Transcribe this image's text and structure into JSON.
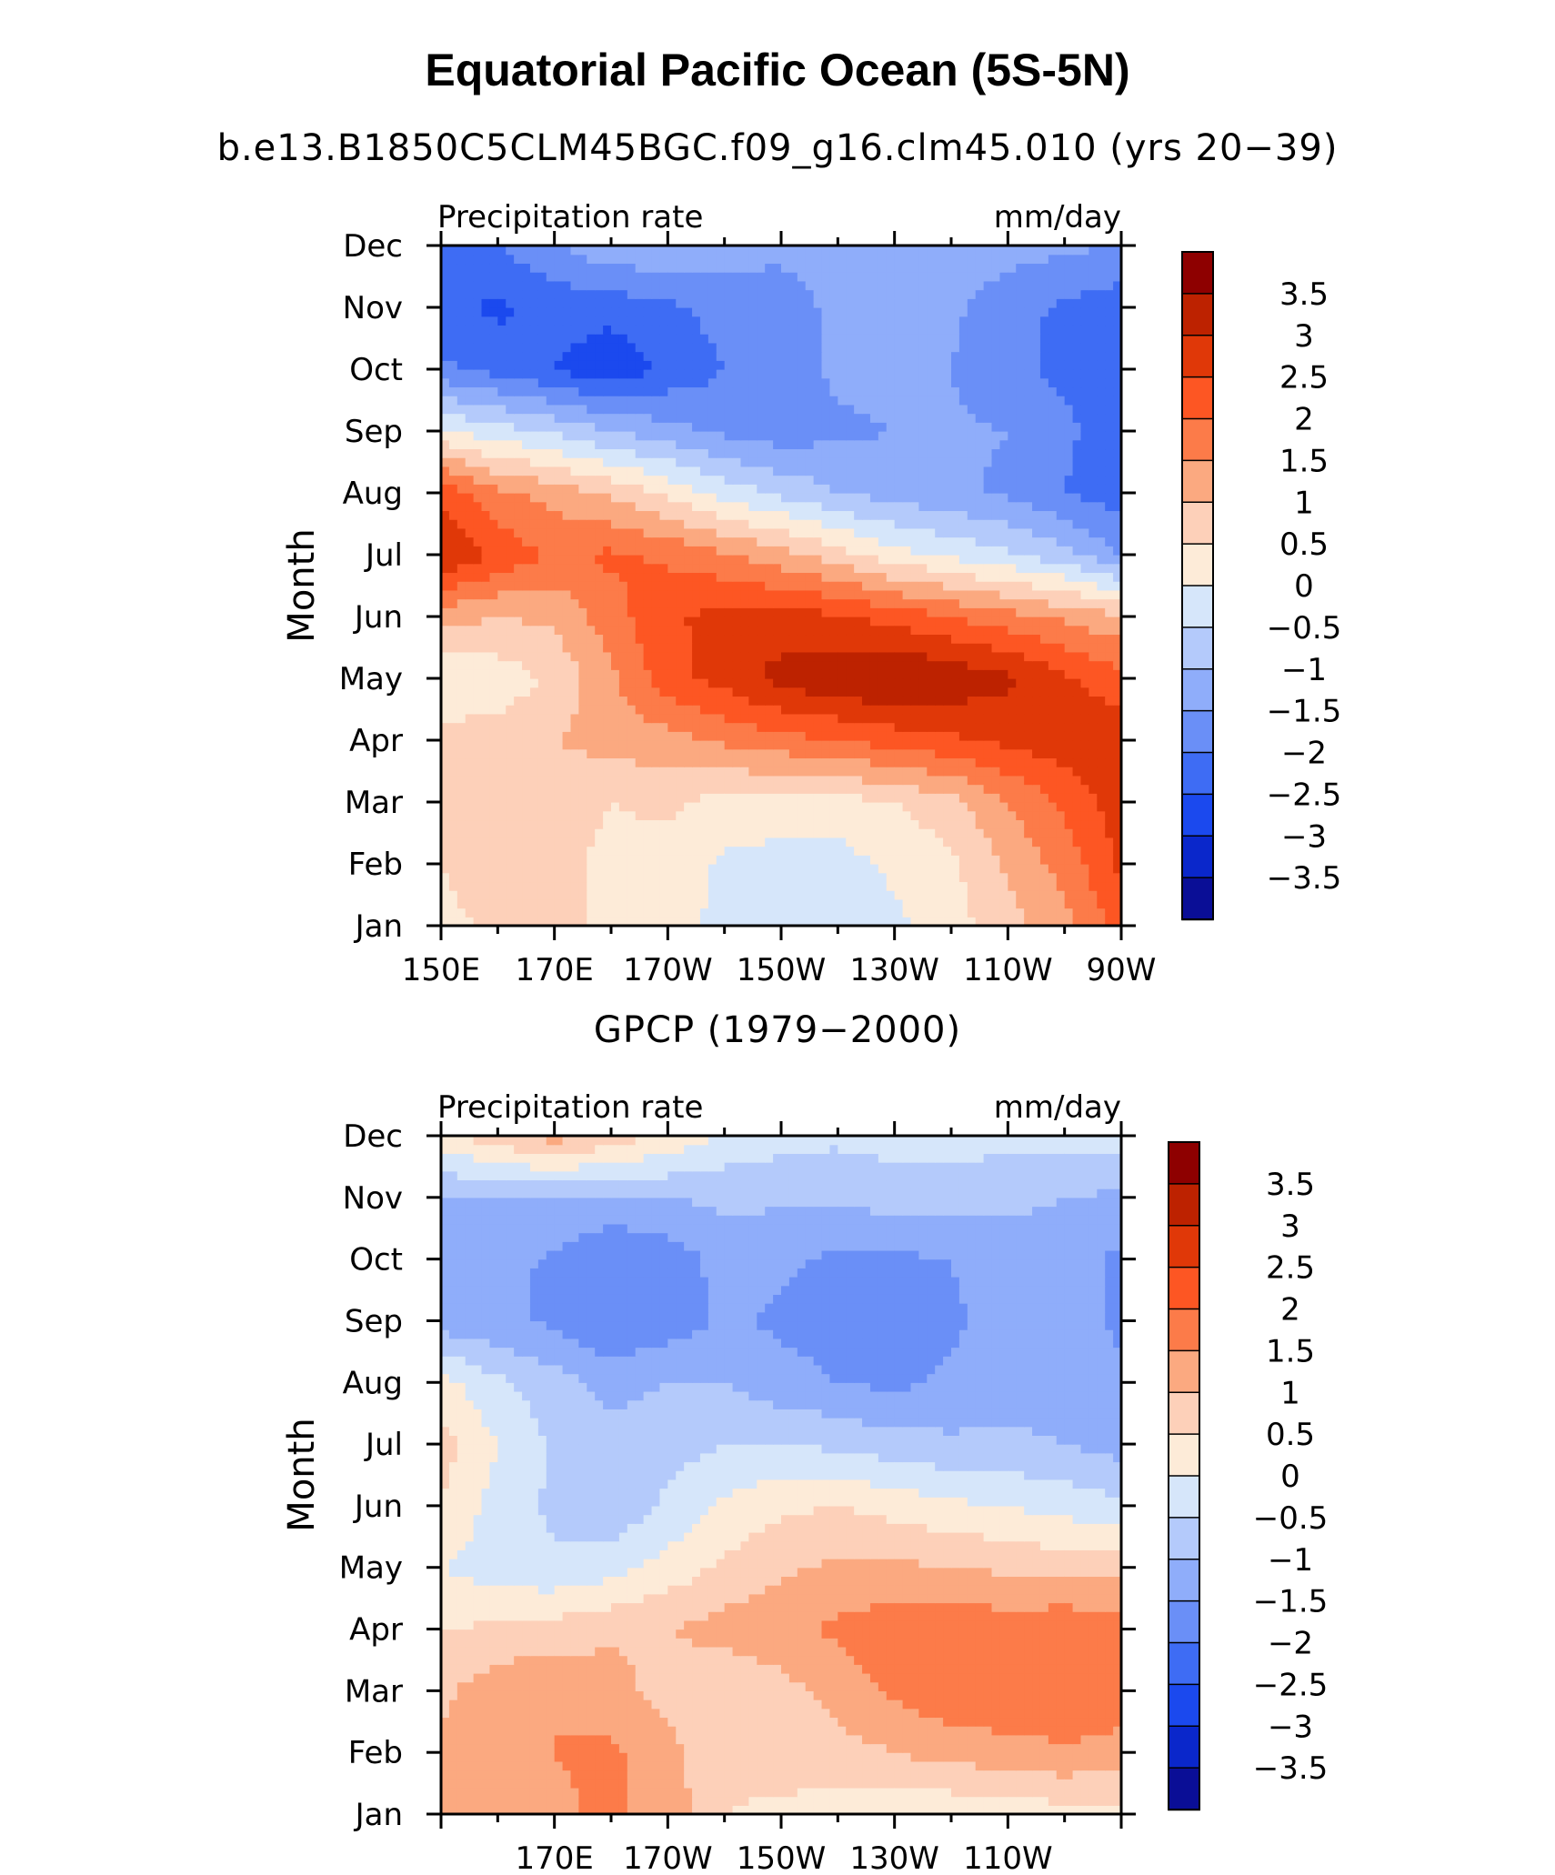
{
  "figure": {
    "title": "Equatorial Pacific Ocean (5S-5N)"
  },
  "colorbar_levels": [
    "3.5",
    "3",
    "2.5",
    "2",
    "1.5",
    "1",
    "0.5",
    "0",
    "−0.5",
    "−1",
    "−1.5",
    "−2",
    "−2.5",
    "−3",
    "−3.5"
  ],
  "colors": {
    "palette": [
      "#8e0000",
      "#bd2200",
      "#e03808",
      "#fd5623",
      "#fc7b49",
      "#fba980",
      "#fdd0b9",
      "#fdebd8",
      "#d6e6fa",
      "#b4cafb",
      "#8fadfa",
      "#6a8ff7",
      "#3e6cf4",
      "#1b49ee",
      "#0a27cb",
      "#0a0e96"
    ]
  },
  "chart_data": [
    {
      "type": "heatmap",
      "title": "b.e13.B1850C5CLM45BGC.f09_g16.clm45.010 (yrs 20−39)",
      "left_string": "Precipitation rate",
      "right_string": "mm/day",
      "xlabel": "",
      "ylabel": "Month",
      "x_ticks": [
        "150E",
        "170E",
        "170W",
        "150W",
        "130W",
        "110W",
        "90W"
      ],
      "x_range": [
        150,
        270
      ],
      "y_ticks": [
        "Jan",
        "Feb",
        "Mar",
        "Apr",
        "May",
        "Jun",
        "Jul",
        "Aug",
        "Sep",
        "Oct",
        "Nov",
        "Dec"
      ],
      "colorbar_range": [
        -3.5,
        3.5
      ],
      "x": [
        150,
        160,
        170,
        180,
        190,
        200,
        210,
        220,
        230,
        240,
        250,
        260,
        270
      ],
      "values": [
        [
          0.3,
          0.6,
          0.6,
          0.4,
          0.3,
          -0.2,
          -0.3,
          -0.3,
          -0.1,
          0.3,
          0.8,
          1.3,
          2.2
        ],
        [
          0.5,
          1.0,
          0.6,
          0.4,
          0.3,
          -0.1,
          -0.2,
          -0.2,
          0.1,
          0.4,
          1.1,
          1.7,
          2.6
        ],
        [
          0.7,
          0.9,
          0.7,
          0.5,
          0.6,
          0.3,
          0.3,
          0.3,
          0.5,
          0.8,
          1.5,
          2.1,
          2.8
        ],
        [
          0.7,
          0.7,
          1.0,
          1.2,
          1.3,
          1.6,
          1.8,
          2.0,
          2.2,
          2.4,
          2.6,
          2.8,
          2.9
        ],
        [
          0.1,
          0.2,
          0.6,
          1.4,
          2.3,
          2.7,
          3.2,
          3.4,
          3.6,
          3.4,
          3.1,
          2.6,
          2.2
        ],
        [
          1.2,
          1.0,
          1.1,
          1.8,
          2.4,
          2.7,
          2.7,
          2.6,
          2.3,
          2.0,
          1.7,
          1.4,
          1.1
        ],
        [
          3.1,
          2.4,
          1.9,
          2.1,
          1.9,
          1.6,
          1.2,
          0.7,
          0.2,
          -0.1,
          -0.4,
          -0.8,
          -1.5
        ],
        [
          2.4,
          1.6,
          1.3,
          0.9,
          0.4,
          -0.2,
          -0.6,
          -1.0,
          -1.2,
          -1.4,
          -1.6,
          -2.0,
          -2.3
        ],
        [
          0.1,
          -0.3,
          -0.6,
          -1.0,
          -1.3,
          -1.6,
          -1.8,
          -1.6,
          -1.5,
          -1.4,
          -1.5,
          -1.9,
          -2.3
        ],
        [
          -1.9,
          -2.2,
          -2.5,
          -2.9,
          -2.4,
          -2.0,
          -1.7,
          -1.4,
          -1.3,
          -1.5,
          -1.9,
          -2.1,
          -2.4
        ],
        [
          -2.4,
          -2.6,
          -2.3,
          -2.3,
          -2.1,
          -1.8,
          -1.7,
          -1.4,
          -1.3,
          -1.4,
          -1.8,
          -2.1,
          -2.3
        ],
        [
          -2.0,
          -2.0,
          -1.6,
          -1.1,
          -1.1,
          -1.3,
          -1.4,
          -1.4,
          -1.2,
          -1.2,
          -1.3,
          -1.4,
          -1.5
        ]
      ]
    },
    {
      "type": "heatmap",
      "title": "GPCP (1979−2000)",
      "left_string": "Precipitation rate",
      "right_string": "mm/day",
      "xlabel": "",
      "ylabel": "Month",
      "x_ticks": [
        "170E",
        "170W",
        "150W",
        "130W",
        "110W"
      ],
      "x_range": [
        150,
        270
      ],
      "y_ticks": [
        "Jan",
        "Feb",
        "Mar",
        "Apr",
        "May",
        "Jun",
        "Jul",
        "Aug",
        "Sep",
        "Oct",
        "Nov",
        "Dec"
      ],
      "colorbar_range": [
        -3.5,
        3.5
      ],
      "x": [
        150,
        160,
        170,
        180,
        190,
        200,
        210,
        220,
        230,
        240,
        250,
        260,
        270
      ],
      "values": [
        [
          1.0,
          1.1,
          1.4,
          1.6,
          1.3,
          0.5,
          0.4,
          0.3,
          0.1,
          0.1,
          0.2,
          0.3,
          0.3
        ],
        [
          1.1,
          1.2,
          1.5,
          1.6,
          1.2,
          0.6,
          0.7,
          0.8,
          1.0,
          1.2,
          1.3,
          1.4,
          1.3
        ],
        [
          0.9,
          1.3,
          1.5,
          1.2,
          0.8,
          0.5,
          0.8,
          1.2,
          1.6,
          1.9,
          1.9,
          2.0,
          1.8
        ],
        [
          0.5,
          0.6,
          0.7,
          0.9,
          1.0,
          1.2,
          1.4,
          1.6,
          1.8,
          1.9,
          1.8,
          1.9,
          1.8
        ],
        [
          0.0,
          -0.3,
          -0.4,
          -0.2,
          0.2,
          0.6,
          0.9,
          1.1,
          1.1,
          1.0,
          0.9,
          0.8,
          0.8
        ],
        [
          0.5,
          -0.2,
          -0.6,
          -0.9,
          -0.4,
          0.1,
          0.4,
          0.5,
          0.3,
          0.1,
          0.0,
          -0.2,
          -0.4
        ],
        [
          0.7,
          0.0,
          -0.6,
          -0.8,
          -0.7,
          -0.5,
          -0.5,
          -0.6,
          -0.8,
          -0.9,
          -0.9,
          -1.0,
          -1.2
        ],
        [
          0.2,
          -0.4,
          -0.8,
          -1.2,
          -1.0,
          -1.0,
          -1.3,
          -1.5,
          -1.6,
          -1.4,
          -1.2,
          -1.2,
          -1.4
        ],
        [
          -1.3,
          -1.4,
          -1.6,
          -2.0,
          -1.8,
          -1.4,
          -1.6,
          -1.7,
          -1.7,
          -1.6,
          -1.3,
          -1.3,
          -1.6
        ],
        [
          -1.1,
          -1.3,
          -1.6,
          -2.0,
          -1.8,
          -1.3,
          -1.4,
          -1.6,
          -1.6,
          -1.5,
          -1.2,
          -1.3,
          -1.6
        ],
        [
          -1.0,
          -1.1,
          -1.0,
          -1.1,
          -1.0,
          -0.9,
          -0.9,
          -0.9,
          -0.8,
          -0.8,
          -0.9,
          -1.0,
          -1.1
        ],
        [
          0.3,
          0.8,
          1.2,
          0.8,
          0.4,
          -0.1,
          -0.3,
          -0.4,
          -0.3,
          -0.3,
          -0.3,
          -0.3,
          -0.3
        ]
      ]
    }
  ]
}
